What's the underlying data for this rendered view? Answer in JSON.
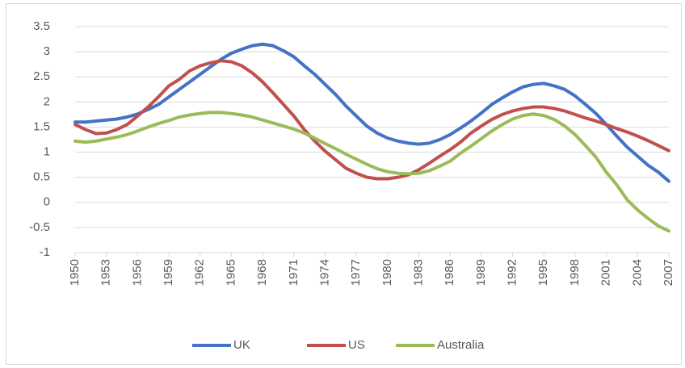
{
  "chart_data": {
    "type": "line",
    "x": [
      1950,
      1951,
      1952,
      1953,
      1954,
      1955,
      1956,
      1957,
      1958,
      1959,
      1960,
      1961,
      1962,
      1963,
      1964,
      1965,
      1966,
      1967,
      1968,
      1969,
      1970,
      1971,
      1972,
      1973,
      1974,
      1975,
      1976,
      1977,
      1978,
      1979,
      1980,
      1981,
      1982,
      1983,
      1984,
      1985,
      1986,
      1987,
      1988,
      1989,
      1990,
      1991,
      1992,
      1993,
      1994,
      1995,
      1996,
      1997,
      1998,
      1999,
      2000,
      2001,
      2002,
      2003,
      2004,
      2005,
      2006,
      2007
    ],
    "xlim": [
      1950,
      2007
    ],
    "xticks": [
      1950,
      1953,
      1956,
      1959,
      1962,
      1965,
      1968,
      1971,
      1974,
      1977,
      1980,
      1983,
      1986,
      1989,
      1992,
      1995,
      1998,
      2001,
      2004,
      2007
    ],
    "ylim": [
      -1,
      3.5
    ],
    "yticks": [
      3.5,
      3,
      2.5,
      2,
      1.5,
      1,
      0.5,
      0,
      -0.5,
      -1
    ],
    "grid": true,
    "legend": "bottom",
    "series": [
      {
        "name": "UK",
        "color": "#4472c4",
        "values": [
          1.6,
          1.6,
          1.62,
          1.64,
          1.66,
          1.7,
          1.76,
          1.85,
          1.95,
          2.1,
          2.25,
          2.4,
          2.55,
          2.7,
          2.85,
          2.97,
          3.05,
          3.12,
          3.15,
          3.12,
          3.02,
          2.9,
          2.72,
          2.55,
          2.35,
          2.15,
          1.92,
          1.72,
          1.52,
          1.38,
          1.28,
          1.22,
          1.18,
          1.16,
          1.18,
          1.25,
          1.35,
          1.48,
          1.62,
          1.78,
          1.95,
          2.08,
          2.2,
          2.3,
          2.35,
          2.37,
          2.32,
          2.25,
          2.12,
          1.95,
          1.77,
          1.55,
          1.32,
          1.1,
          0.92,
          0.74,
          0.6,
          0.42
        ]
      },
      {
        "name": "US",
        "color": "#c0504d",
        "values": [
          1.55,
          1.45,
          1.37,
          1.38,
          1.45,
          1.55,
          1.72,
          1.9,
          2.1,
          2.32,
          2.45,
          2.62,
          2.72,
          2.78,
          2.82,
          2.8,
          2.72,
          2.58,
          2.4,
          2.18,
          1.95,
          1.72,
          1.45,
          1.22,
          1.02,
          0.85,
          0.68,
          0.58,
          0.5,
          0.47,
          0.47,
          0.5,
          0.55,
          0.65,
          0.78,
          0.92,
          1.05,
          1.2,
          1.38,
          1.52,
          1.65,
          1.75,
          1.82,
          1.87,
          1.9,
          1.9,
          1.87,
          1.82,
          1.75,
          1.68,
          1.62,
          1.55,
          1.47,
          1.4,
          1.32,
          1.23,
          1.13,
          1.03
        ]
      },
      {
        "name": "Australia",
        "color": "#9bbb59",
        "values": [
          1.22,
          1.2,
          1.22,
          1.26,
          1.3,
          1.35,
          1.42,
          1.5,
          1.57,
          1.63,
          1.7,
          1.74,
          1.77,
          1.79,
          1.79,
          1.77,
          1.74,
          1.7,
          1.64,
          1.58,
          1.52,
          1.46,
          1.38,
          1.28,
          1.17,
          1.07,
          0.96,
          0.86,
          0.76,
          0.67,
          0.61,
          0.58,
          0.57,
          0.58,
          0.63,
          0.72,
          0.82,
          0.98,
          1.12,
          1.27,
          1.42,
          1.55,
          1.66,
          1.73,
          1.76,
          1.73,
          1.65,
          1.52,
          1.35,
          1.13,
          0.9,
          0.6,
          0.35,
          0.05,
          -0.15,
          -0.32,
          -0.47,
          -0.57
        ]
      }
    ]
  }
}
